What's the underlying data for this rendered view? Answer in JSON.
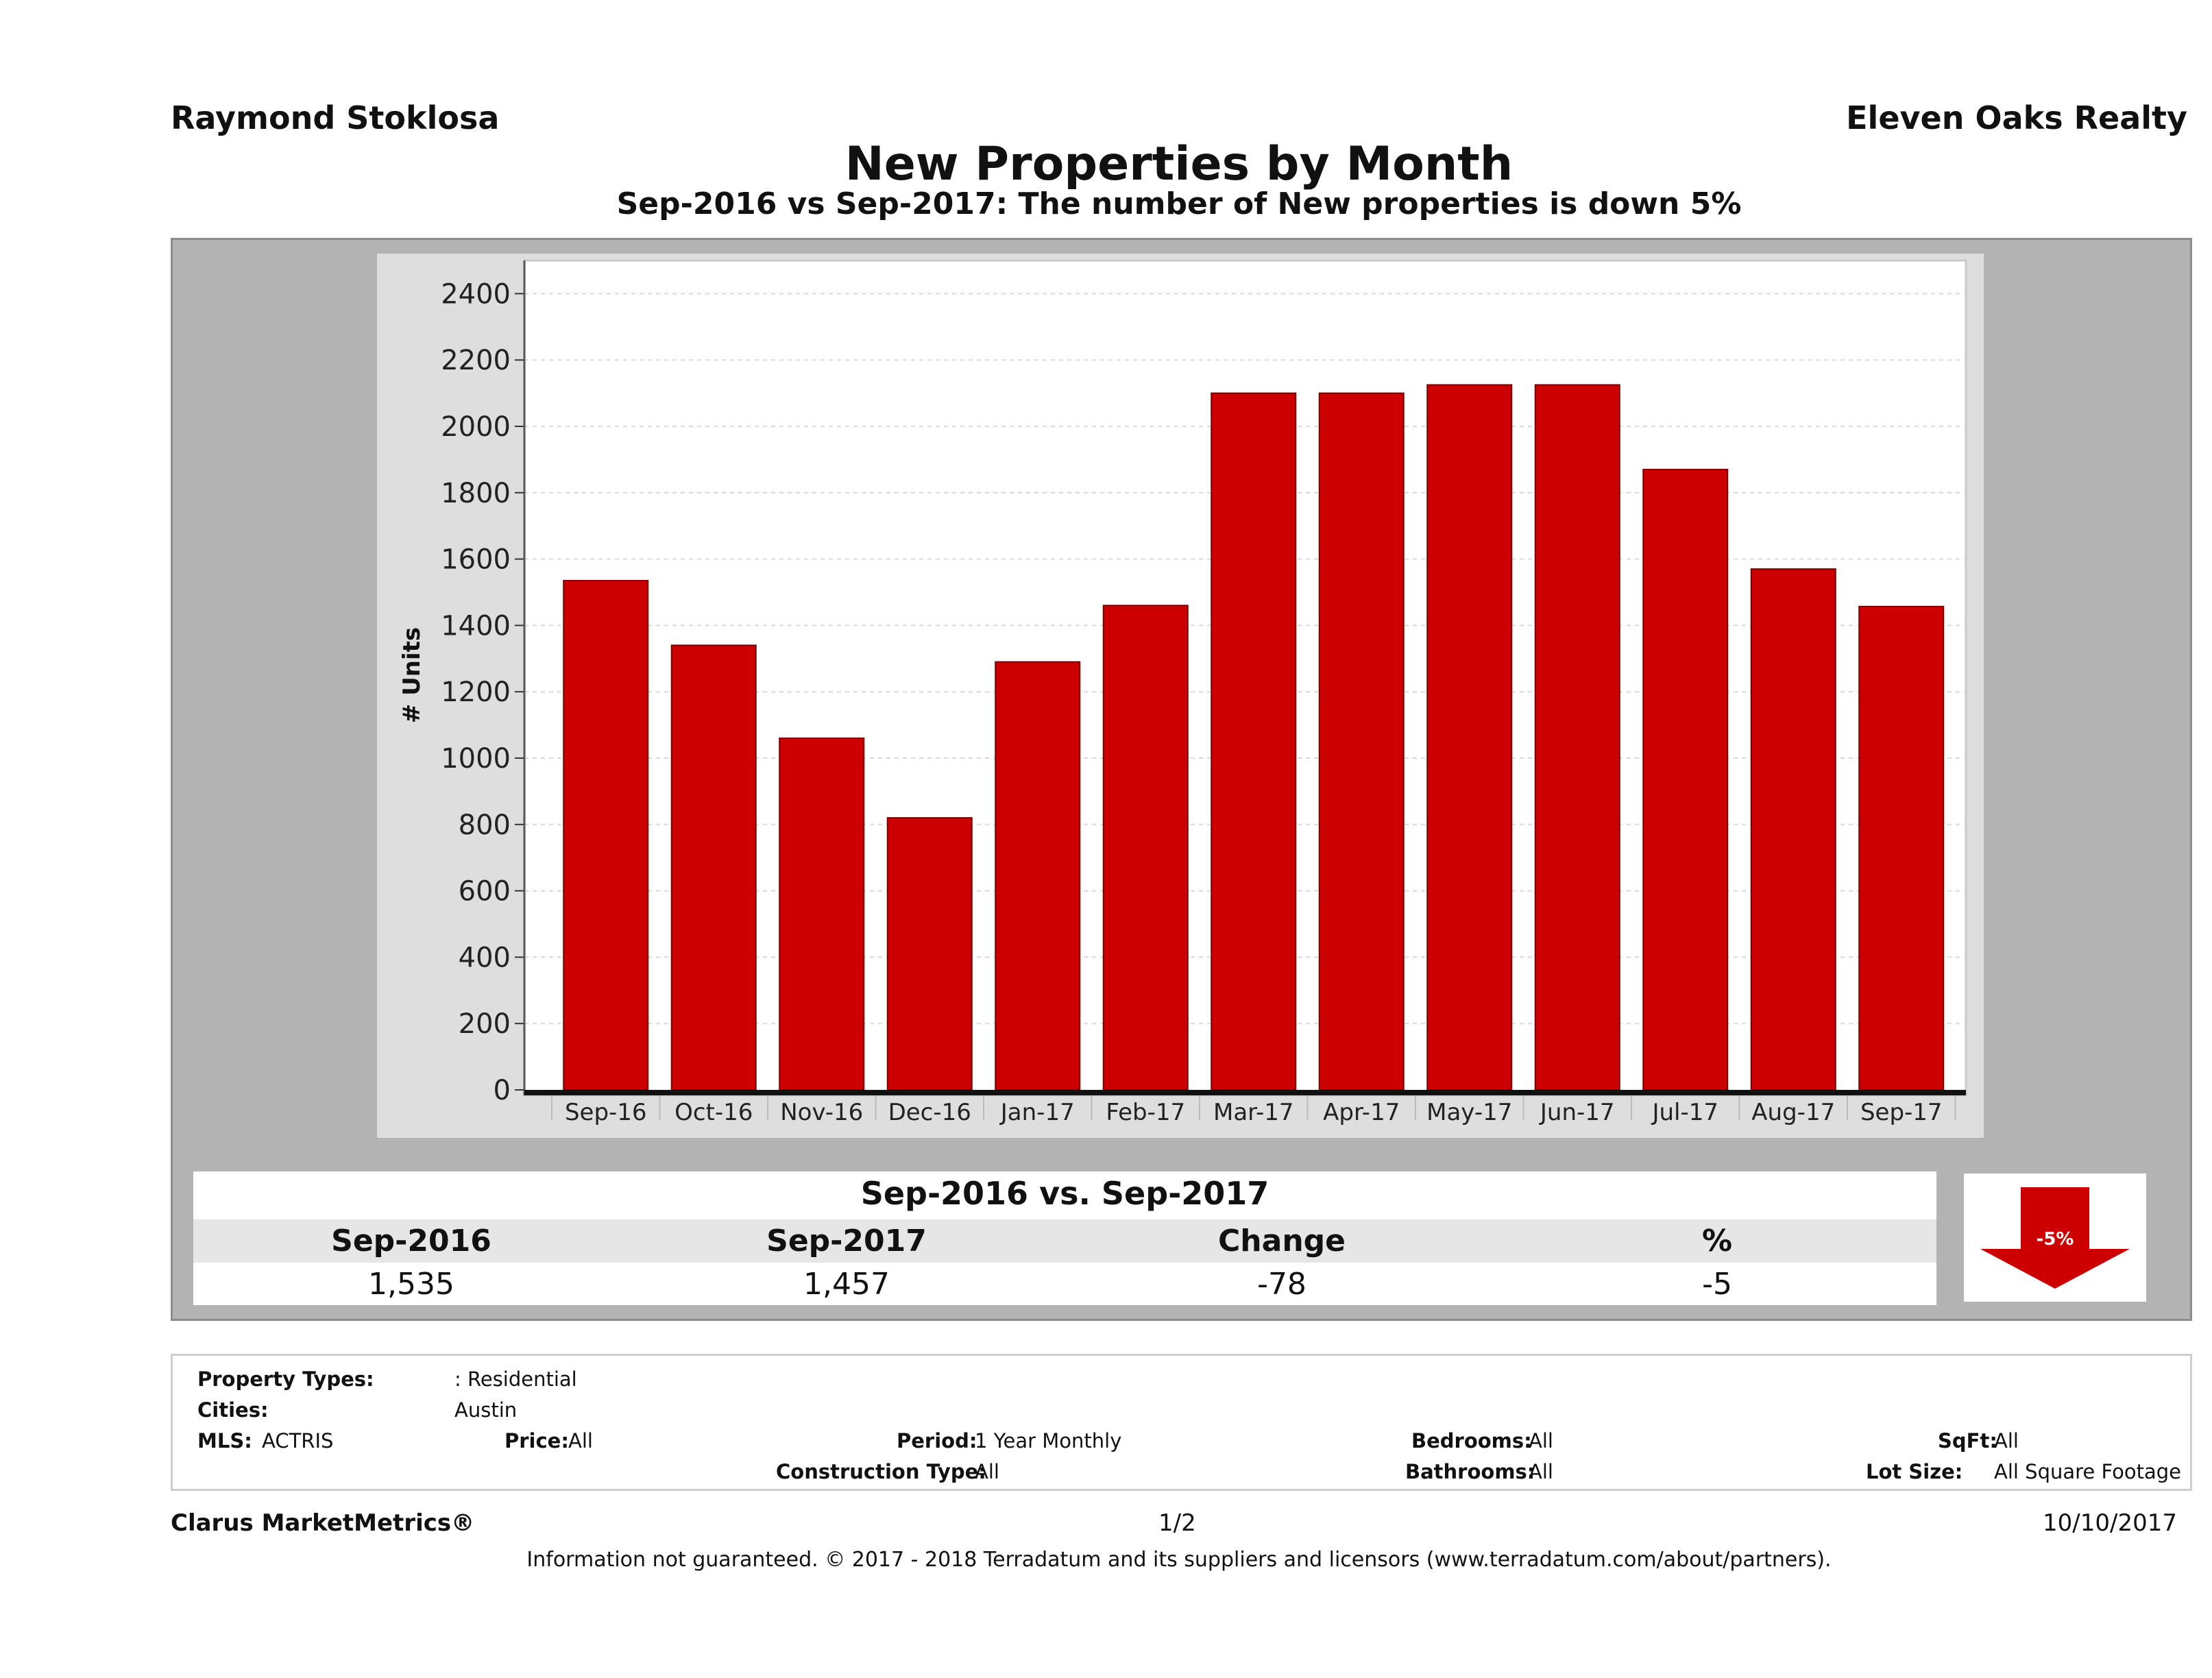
{
  "header": {
    "agent_name": "Raymond Stoklosa",
    "brokerage": "Eleven Oaks Realty"
  },
  "chart_data": {
    "type": "bar",
    "title": "New Properties by Month",
    "subtitle": "Sep-2016 vs Sep-2017: The number of New  properties is down 5%",
    "ylabel": "# Units",
    "xlabel": "",
    "ylim": [
      0,
      2500
    ],
    "yticks": [
      0,
      200,
      400,
      600,
      800,
      1000,
      1200,
      1400,
      1600,
      1800,
      2000,
      2200,
      2400
    ],
    "categories": [
      "Sep-16",
      "Oct-16",
      "Nov-16",
      "Dec-16",
      "Jan-17",
      "Feb-17",
      "Mar-17",
      "Apr-17",
      "May-17",
      "Jun-17",
      "Jul-17",
      "Aug-17",
      "Sep-17"
    ],
    "values": [
      1535,
      1340,
      1060,
      820,
      1290,
      1460,
      2100,
      2100,
      2125,
      2125,
      1870,
      1570,
      1457
    ],
    "bar_color": "#cc0000",
    "grid": true
  },
  "summary": {
    "title": "Sep-2016 vs. Sep-2017",
    "headers": [
      "Sep-2016",
      "Sep-2017",
      "Change",
      "%"
    ],
    "values": [
      "1,535",
      "1,457",
      "-78",
      "-5"
    ],
    "badge": "-5%",
    "badge_color": "#cc0000",
    "badge_icon": "down-arrow-icon"
  },
  "filters": {
    "property_types_label": "Property Types:",
    "property_types_value": ": Residential",
    "cities_label": "Cities:",
    "cities_value": "Austin",
    "mls_label": "MLS:",
    "mls_value": "ACTRIS",
    "price_label": "Price:",
    "price_value": "All",
    "period_label": "Period:",
    "period_value": "1 Year Monthly",
    "construction_label": "Construction Type:",
    "construction_value": "All",
    "bedrooms_label": "Bedrooms:",
    "bedrooms_value": "All",
    "bathrooms_label": "Bathrooms:",
    "bathrooms_value": "All",
    "sqft_label": "SqFt:",
    "sqft_value": "All",
    "lotsize_label": "Lot Size:",
    "lotsize_value": "All Square Footage"
  },
  "footer": {
    "brand": "Clarus MarketMetrics®",
    "page": "1/2",
    "date": "10/10/2017",
    "disclaimer": "Information not guaranteed. © 2017 - 2018 Terradatum and its suppliers and licensors (www.terradatum.com/about/partners)."
  }
}
